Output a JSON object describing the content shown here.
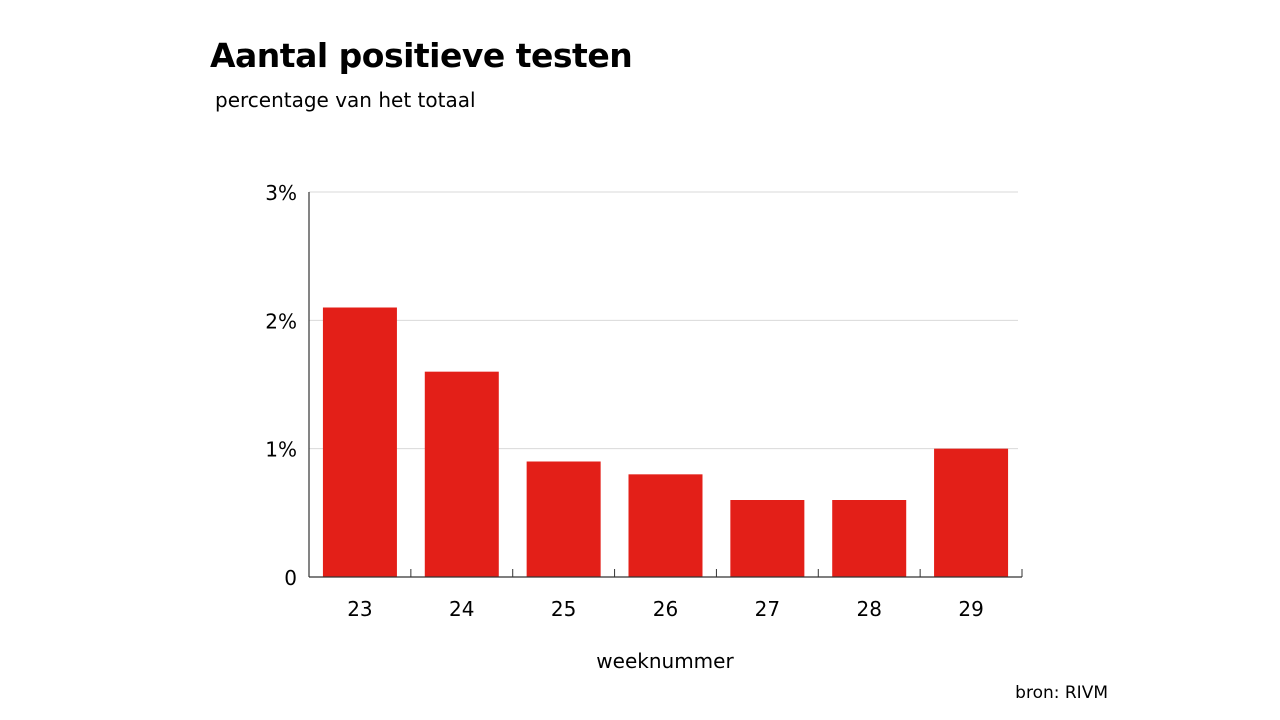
{
  "colors": {
    "bar": "#e31f18",
    "grid": "#d9d9d9",
    "axis": "#333333"
  },
  "source": "bron: RIVM",
  "chart_data": {
    "type": "bar",
    "title": "Aantal positieve testen",
    "subtitle": "percentage van het totaal",
    "xlabel": "weeknummer",
    "ylabel": "",
    "categories": [
      "23",
      "24",
      "25",
      "26",
      "27",
      "28",
      "29"
    ],
    "values": [
      2.1,
      1.6,
      0.9,
      0.8,
      0.6,
      0.6,
      1.0
    ],
    "unit": "%",
    "ylim": [
      0,
      3
    ],
    "yticks": [
      0,
      1,
      2,
      3
    ],
    "ytick_labels": [
      "0",
      "1%",
      "2%",
      "3%"
    ],
    "grid": true,
    "legend": "none"
  }
}
